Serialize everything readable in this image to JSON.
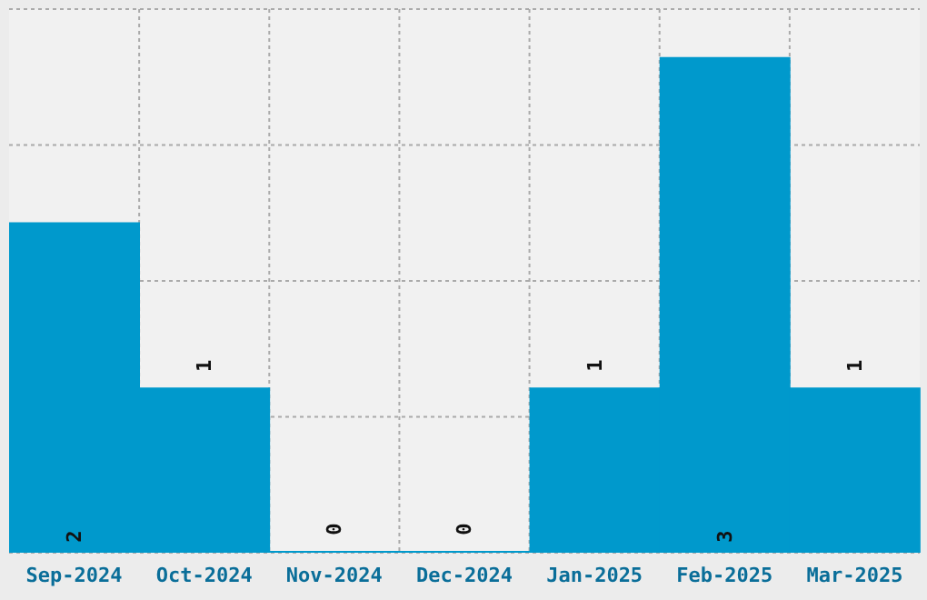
{
  "chart_data": {
    "type": "bar",
    "categories": [
      "Sep-2024",
      "Oct-2024",
      "Nov-2024",
      "Dec-2024",
      "Jan-2025",
      "Feb-2025",
      "Mar-2025"
    ],
    "values": [
      2,
      1,
      0,
      0,
      1,
      3,
      1
    ],
    "color": "#0099cc",
    "data_labels": true,
    "grid": true,
    "tick_labels": "x",
    "ylim": [
      0,
      3.29
    ]
  }
}
